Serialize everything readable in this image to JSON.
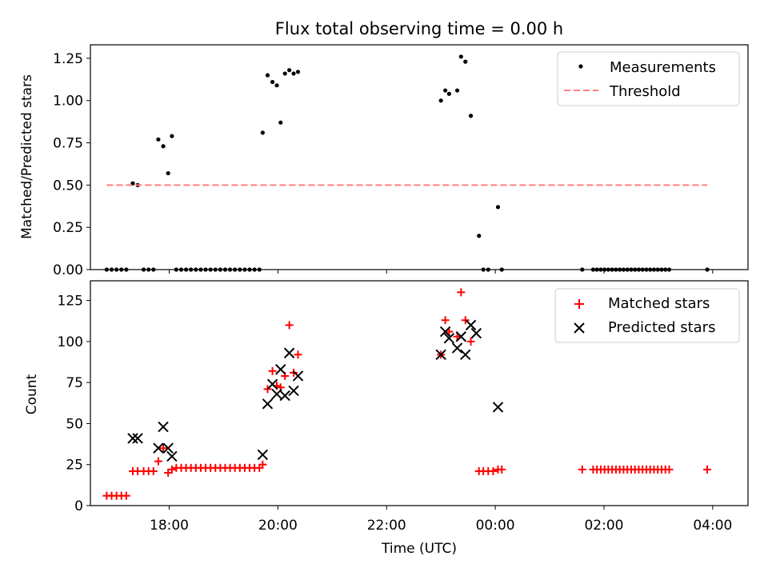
{
  "chart_data": [
    {
      "type": "scatter",
      "title": "Flux total observing time = 0.00 h",
      "xlabel": "",
      "ylabel": "Matched/Predicted stars",
      "xlim_hours": [
        16.55,
        28.65
      ],
      "ylim": [
        0,
        1.33
      ],
      "yticks": [
        0,
        0.25,
        0.5,
        0.75,
        1.0,
        1.25
      ],
      "ytick_labels": [
        "0.00",
        "0.25",
        "0.50",
        "0.75",
        "1.00",
        "1.25"
      ],
      "legend_position": "top-right",
      "series": [
        {
          "name": "Measurements",
          "color": "#000000",
          "marker": "dot",
          "points": [
            [
              16.85,
              0
            ],
            [
              16.94,
              0
            ],
            [
              17.03,
              0
            ],
            [
              17.12,
              0
            ],
            [
              17.21,
              0
            ],
            [
              17.33,
              0.51
            ],
            [
              17.42,
              0.5
            ],
            [
              17.53,
              0
            ],
            [
              17.62,
              0
            ],
            [
              17.71,
              0
            ],
            [
              17.8,
              0.77
            ],
            [
              17.89,
              0.73
            ],
            [
              17.98,
              0.57
            ],
            [
              18.05,
              0.79
            ],
            [
              18.13,
              0
            ],
            [
              18.22,
              0
            ],
            [
              18.31,
              0
            ],
            [
              18.4,
              0
            ],
            [
              18.49,
              0
            ],
            [
              18.58,
              0
            ],
            [
              18.67,
              0
            ],
            [
              18.76,
              0
            ],
            [
              18.85,
              0
            ],
            [
              18.94,
              0
            ],
            [
              19.03,
              0
            ],
            [
              19.12,
              0
            ],
            [
              19.21,
              0
            ],
            [
              19.3,
              0
            ],
            [
              19.39,
              0
            ],
            [
              19.48,
              0
            ],
            [
              19.57,
              0
            ],
            [
              19.66,
              0
            ],
            [
              19.72,
              0.81
            ],
            [
              19.81,
              1.15
            ],
            [
              19.9,
              1.11
            ],
            [
              19.98,
              1.09
            ],
            [
              20.05,
              0.87
            ],
            [
              20.13,
              1.16
            ],
            [
              20.21,
              1.18
            ],
            [
              20.29,
              1.16
            ],
            [
              20.37,
              1.17
            ],
            [
              23.0,
              1.0
            ],
            [
              23.08,
              1.06
            ],
            [
              23.15,
              1.04
            ],
            [
              23.3,
              1.06
            ],
            [
              23.37,
              1.26
            ],
            [
              23.45,
              1.23
            ],
            [
              23.55,
              0.91
            ],
            [
              23.7,
              0.2
            ],
            [
              23.78,
              0
            ],
            [
              23.87,
              0
            ],
            [
              24.05,
              0.37
            ],
            [
              24.12,
              0
            ],
            [
              25.6,
              0
            ],
            [
              25.8,
              0
            ],
            [
              25.87,
              0
            ],
            [
              25.94,
              0
            ],
            [
              26.01,
              0
            ],
            [
              26.08,
              0
            ],
            [
              26.15,
              0
            ],
            [
              26.22,
              0
            ],
            [
              26.29,
              0
            ],
            [
              26.36,
              0
            ],
            [
              26.43,
              0
            ],
            [
              26.5,
              0
            ],
            [
              26.57,
              0
            ],
            [
              26.64,
              0
            ],
            [
              26.71,
              0
            ],
            [
              26.78,
              0
            ],
            [
              26.85,
              0
            ],
            [
              26.92,
              0
            ],
            [
              26.99,
              0
            ],
            [
              27.06,
              0
            ],
            [
              27.13,
              0
            ],
            [
              27.2,
              0
            ],
            [
              27.9,
              0
            ]
          ]
        },
        {
          "name": "Threshold",
          "color": "#ff7f7f",
          "marker": "dashed-line",
          "points": [
            [
              16.85,
              0.5
            ],
            [
              27.9,
              0.5
            ]
          ]
        }
      ]
    },
    {
      "type": "scatter",
      "title": "",
      "xlabel": "Time (UTC)",
      "ylabel": "Count",
      "xlim_hours": [
        16.55,
        28.65
      ],
      "ylim": [
        0,
        137
      ],
      "yticks": [
        0,
        25,
        50,
        75,
        100,
        125
      ],
      "ytick_labels": [
        "0",
        "25",
        "50",
        "75",
        "100",
        "125"
      ],
      "xticks_hours": [
        18,
        20,
        22,
        24,
        26,
        28
      ],
      "xtick_labels": [
        "18:00",
        "20:00",
        "22:00",
        "00:00",
        "02:00",
        "04:00"
      ],
      "legend_position": "top-right",
      "series": [
        {
          "name": "Matched stars",
          "color": "#ff0000",
          "marker": "plus",
          "points": [
            [
              16.85,
              6
            ],
            [
              16.94,
              6
            ],
            [
              17.03,
              6
            ],
            [
              17.12,
              6
            ],
            [
              17.21,
              6
            ],
            [
              17.33,
              21
            ],
            [
              17.42,
              21
            ],
            [
              17.53,
              21
            ],
            [
              17.62,
              21
            ],
            [
              17.71,
              21
            ],
            [
              17.8,
              27
            ],
            [
              17.89,
              35
            ],
            [
              17.98,
              20
            ],
            [
              18.05,
              22
            ],
            [
              18.13,
              23
            ],
            [
              18.22,
              23
            ],
            [
              18.31,
              23
            ],
            [
              18.4,
              23
            ],
            [
              18.49,
              23
            ],
            [
              18.58,
              23
            ],
            [
              18.67,
              23
            ],
            [
              18.76,
              23
            ],
            [
              18.85,
              23
            ],
            [
              18.94,
              23
            ],
            [
              19.03,
              23
            ],
            [
              19.12,
              23
            ],
            [
              19.21,
              23
            ],
            [
              19.3,
              23
            ],
            [
              19.39,
              23
            ],
            [
              19.48,
              23
            ],
            [
              19.57,
              23
            ],
            [
              19.66,
              23
            ],
            [
              19.72,
              25
            ],
            [
              19.81,
              71
            ],
            [
              19.9,
              82
            ],
            [
              19.98,
              73
            ],
            [
              20.05,
              72
            ],
            [
              20.13,
              79
            ],
            [
              20.21,
              110
            ],
            [
              20.29,
              81
            ],
            [
              20.37,
              92
            ],
            [
              23.0,
              92
            ],
            [
              23.08,
              113
            ],
            [
              23.15,
              106
            ],
            [
              23.3,
              103
            ],
            [
              23.37,
              130
            ],
            [
              23.45,
              113
            ],
            [
              23.55,
              100
            ],
            [
              23.7,
              21
            ],
            [
              23.78,
              21
            ],
            [
              23.87,
              21
            ],
            [
              23.96,
              21
            ],
            [
              24.05,
              22
            ],
            [
              24.12,
              22
            ],
            [
              25.6,
              22
            ],
            [
              25.8,
              22
            ],
            [
              25.87,
              22
            ],
            [
              25.94,
              22
            ],
            [
              26.01,
              22
            ],
            [
              26.08,
              22
            ],
            [
              26.15,
              22
            ],
            [
              26.22,
              22
            ],
            [
              26.29,
              22
            ],
            [
              26.36,
              22
            ],
            [
              26.43,
              22
            ],
            [
              26.5,
              22
            ],
            [
              26.57,
              22
            ],
            [
              26.64,
              22
            ],
            [
              26.71,
              22
            ],
            [
              26.78,
              22
            ],
            [
              26.85,
              22
            ],
            [
              26.92,
              22
            ],
            [
              26.99,
              22
            ],
            [
              27.06,
              22
            ],
            [
              27.13,
              22
            ],
            [
              27.2,
              22
            ],
            [
              27.9,
              22
            ]
          ]
        },
        {
          "name": "Predicted stars",
          "color": "#000000",
          "marker": "x",
          "points": [
            [
              17.33,
              41
            ],
            [
              17.42,
              41
            ],
            [
              17.8,
              35
            ],
            [
              17.89,
              48
            ],
            [
              17.98,
              35
            ],
            [
              18.05,
              30
            ],
            [
              19.72,
              31
            ],
            [
              19.81,
              62
            ],
            [
              19.9,
              74
            ],
            [
              19.98,
              68
            ],
            [
              20.05,
              83
            ],
            [
              20.13,
              67
            ],
            [
              20.21,
              93
            ],
            [
              20.29,
              70
            ],
            [
              20.37,
              79
            ],
            [
              23.0,
              92
            ],
            [
              23.08,
              106
            ],
            [
              23.15,
              102
            ],
            [
              23.3,
              96
            ],
            [
              23.37,
              103
            ],
            [
              23.45,
              92
            ],
            [
              23.55,
              110
            ],
            [
              23.65,
              105
            ],
            [
              24.05,
              60
            ]
          ]
        }
      ]
    }
  ]
}
